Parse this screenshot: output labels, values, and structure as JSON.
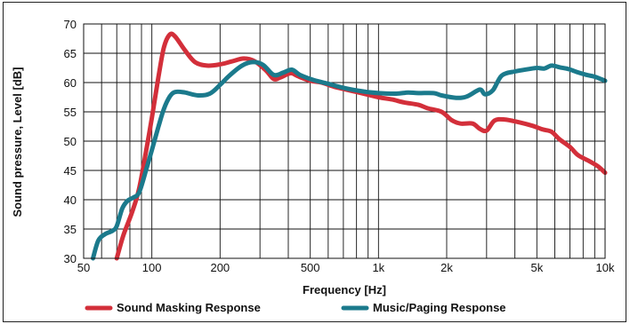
{
  "chart_data": {
    "type": "line",
    "xlabel": "Frequency [Hz]",
    "ylabel": "Sound pressure, Level [dB]",
    "xscale": "log",
    "xlim": [
      50,
      10000
    ],
    "ylim": [
      30,
      70
    ],
    "grid": true,
    "legend_position": "bottom",
    "x_ticks": [
      {
        "value": 50,
        "label": "50"
      },
      {
        "value": 100,
        "label": "100"
      },
      {
        "value": 200,
        "label": "200"
      },
      {
        "value": 500,
        "label": "500"
      },
      {
        "value": 1000,
        "label": "1k"
      },
      {
        "value": 2000,
        "label": "2k"
      },
      {
        "value": 5000,
        "label": "5k"
      },
      {
        "value": 10000,
        "label": "10k"
      }
    ],
    "y_ticks": [
      30,
      35,
      40,
      45,
      50,
      55,
      60,
      65,
      70
    ],
    "series": [
      {
        "name": "Sound Masking Response",
        "color": "#d32f3a",
        "points": [
          [
            70,
            30
          ],
          [
            75,
            34
          ],
          [
            82,
            38
          ],
          [
            88,
            42
          ],
          [
            95,
            49
          ],
          [
            100,
            54
          ],
          [
            107,
            61
          ],
          [
            113,
            66
          ],
          [
            120,
            68.2
          ],
          [
            127,
            67.8
          ],
          [
            140,
            65.5
          ],
          [
            155,
            63.5
          ],
          [
            175,
            62.9
          ],
          [
            200,
            63.1
          ],
          [
            225,
            63.6
          ],
          [
            255,
            64.1
          ],
          [
            285,
            63.6
          ],
          [
            320,
            62
          ],
          [
            345,
            60.6
          ],
          [
            370,
            60.9
          ],
          [
            410,
            61.6
          ],
          [
            440,
            61.1
          ],
          [
            500,
            60.3
          ],
          [
            560,
            60.0
          ],
          [
            650,
            59.2
          ],
          [
            800,
            58.4
          ],
          [
            1000,
            57.5
          ],
          [
            1150,
            57.1
          ],
          [
            1300,
            56.6
          ],
          [
            1500,
            56.2
          ],
          [
            1650,
            55.6
          ],
          [
            1900,
            55.0
          ],
          [
            2100,
            53.6
          ],
          [
            2300,
            53.0
          ],
          [
            2600,
            53.0
          ],
          [
            2800,
            52.1
          ],
          [
            3000,
            51.8
          ],
          [
            3250,
            53.5
          ],
          [
            3600,
            53.7
          ],
          [
            4200,
            53.2
          ],
          [
            4800,
            52.6
          ],
          [
            5300,
            52.0
          ],
          [
            5800,
            51.6
          ],
          [
            6300,
            50.3
          ],
          [
            7000,
            49.0
          ],
          [
            7600,
            47.6
          ],
          [
            8500,
            46.6
          ],
          [
            9300,
            45.7
          ],
          [
            10000,
            44.6
          ]
        ]
      },
      {
        "name": "Music/Paging Response",
        "color": "#1b7a8c",
        "points": [
          [
            55,
            30
          ],
          [
            58,
            33
          ],
          [
            62,
            34.1
          ],
          [
            67,
            34.7
          ],
          [
            70,
            35.5
          ],
          [
            74,
            38.5
          ],
          [
            78,
            39.8
          ],
          [
            83,
            40.4
          ],
          [
            88,
            41.3
          ],
          [
            95,
            45.5
          ],
          [
            100,
            48.5
          ],
          [
            107,
            52.5
          ],
          [
            113,
            55.5
          ],
          [
            120,
            57.6
          ],
          [
            127,
            58.4
          ],
          [
            140,
            58.3
          ],
          [
            160,
            57.8
          ],
          [
            180,
            58.1
          ],
          [
            200,
            59.6
          ],
          [
            220,
            61.2
          ],
          [
            250,
            62.9
          ],
          [
            280,
            63.5
          ],
          [
            310,
            63.0
          ],
          [
            345,
            61.3
          ],
          [
            380,
            61.7
          ],
          [
            415,
            62.2
          ],
          [
            450,
            61.3
          ],
          [
            520,
            60.4
          ],
          [
            600,
            59.8
          ],
          [
            700,
            59.1
          ],
          [
            850,
            58.5
          ],
          [
            1000,
            58.2
          ],
          [
            1200,
            58.1
          ],
          [
            1350,
            58.3
          ],
          [
            1500,
            58.2
          ],
          [
            1750,
            58.2
          ],
          [
            1900,
            57.8
          ],
          [
            2200,
            57.4
          ],
          [
            2450,
            57.6
          ],
          [
            2800,
            58.8
          ],
          [
            2950,
            58.0
          ],
          [
            3200,
            58.7
          ],
          [
            3500,
            61.2
          ],
          [
            4000,
            61.9
          ],
          [
            4600,
            62.3
          ],
          [
            5000,
            62.5
          ],
          [
            5400,
            62.4
          ],
          [
            5800,
            62.9
          ],
          [
            6300,
            62.6
          ],
          [
            6900,
            62.3
          ],
          [
            7500,
            61.8
          ],
          [
            8300,
            61.3
          ],
          [
            9000,
            61.0
          ],
          [
            10000,
            60.3
          ]
        ]
      }
    ]
  }
}
